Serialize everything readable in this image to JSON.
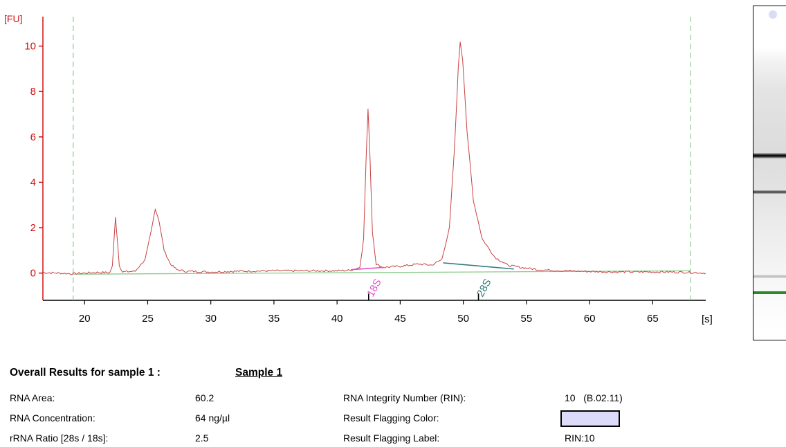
{
  "chart_data": {
    "type": "line",
    "ylabel": "[FU]",
    "xlabel": "[s]",
    "x_ticks": [
      20,
      25,
      30,
      35,
      40,
      45,
      50,
      55,
      60,
      65
    ],
    "y_ticks": [
      0,
      2,
      4,
      6,
      8,
      10
    ],
    "xlim": [
      16.7,
      69.2
    ],
    "ylim": [
      -1.2,
      11.3
    ],
    "x_colors": {
      "axis": "#000000",
      "y_axis": "#d01010"
    },
    "time_window_markers": [
      19.1,
      68.0
    ],
    "trace_color": "#c84040",
    "baseline_color": "#88cc88",
    "series": [
      {
        "name": "",
        "points": [
          [
            16.7,
            0.02
          ],
          [
            18.0,
            0.0
          ],
          [
            19.0,
            -0.03
          ],
          [
            20.0,
            0.0
          ],
          [
            21.0,
            0.03
          ],
          [
            22.0,
            0.02
          ],
          [
            22.2,
            0.3
          ],
          [
            22.35,
            1.6
          ],
          [
            22.45,
            2.5
          ],
          [
            22.55,
            1.8
          ],
          [
            22.75,
            0.35
          ],
          [
            23.0,
            0.05
          ],
          [
            24.0,
            0.08
          ],
          [
            24.8,
            0.6
          ],
          [
            25.3,
            1.9
          ],
          [
            25.6,
            2.85
          ],
          [
            25.9,
            2.3
          ],
          [
            26.3,
            1.0
          ],
          [
            26.8,
            0.4
          ],
          [
            27.3,
            0.15
          ],
          [
            28.0,
            0.08
          ],
          [
            30.0,
            0.05
          ],
          [
            32.0,
            0.08
          ],
          [
            35.0,
            0.1
          ],
          [
            38.0,
            0.1
          ],
          [
            40.0,
            0.1
          ],
          [
            41.0,
            0.12
          ],
          [
            41.8,
            0.25
          ],
          [
            42.1,
            1.5
          ],
          [
            42.3,
            5.0
          ],
          [
            42.45,
            7.2
          ],
          [
            42.6,
            5.3
          ],
          [
            42.8,
            1.8
          ],
          [
            43.1,
            0.4
          ],
          [
            43.6,
            0.25
          ],
          [
            45.0,
            0.3
          ],
          [
            46.5,
            0.4
          ],
          [
            47.5,
            0.35
          ],
          [
            48.3,
            0.6
          ],
          [
            48.9,
            2.0
          ],
          [
            49.3,
            5.5
          ],
          [
            49.6,
            9.0
          ],
          [
            49.75,
            10.2
          ],
          [
            49.95,
            9.4
          ],
          [
            50.3,
            6.2
          ],
          [
            50.8,
            3.2
          ],
          [
            51.5,
            1.5
          ],
          [
            52.5,
            0.7
          ],
          [
            53.5,
            0.35
          ],
          [
            54.5,
            0.25
          ],
          [
            56.0,
            0.15
          ],
          [
            58.0,
            0.1
          ],
          [
            60.0,
            0.07
          ],
          [
            62.0,
            0.05
          ],
          [
            64.0,
            0.05
          ],
          [
            66.0,
            0.05
          ],
          [
            68.0,
            0.03
          ],
          [
            69.2,
            0.0
          ]
        ]
      }
    ],
    "baseline": [
      [
        19.1,
        -0.05
      ],
      [
        68.0,
        0.1
      ]
    ],
    "peak_regions": [
      {
        "label": "18S",
        "color": "#e050d0",
        "start": [
          41.1,
          0.15
        ],
        "end": [
          43.7,
          0.25
        ],
        "marker_x": 42.5
      },
      {
        "label": "28S",
        "color": "#2d7b7b",
        "start": [
          48.4,
          0.45
        ],
        "end": [
          54.0,
          0.18
        ],
        "marker_x": 51.2
      }
    ]
  },
  "results": {
    "title": "Overall Results for sample 1  :",
    "sample_name": "Sample 1",
    "rows": [
      {
        "label": "RNA Area:",
        "value": "60.2",
        "label2": "RNA Integrity Number (RIN):",
        "value2": "10   (B.02.11)"
      },
      {
        "label": "RNA Concentration:",
        "value": "64 ng/µl",
        "label2": "Result Flagging Color:",
        "value2": ""
      },
      {
        "label": "rRNA Ratio [28s / 18s]:",
        "value": "2.5",
        "label2": "Result Flagging Label:",
        "value2": "RIN:10"
      }
    ],
    "flag_color": "#dcdcfa"
  },
  "gel": {
    "bands": [
      {
        "kind": "dark-thick"
      },
      {
        "kind": "dark-thin"
      },
      {
        "kind": "faint"
      },
      {
        "kind": "green-marker"
      }
    ]
  }
}
